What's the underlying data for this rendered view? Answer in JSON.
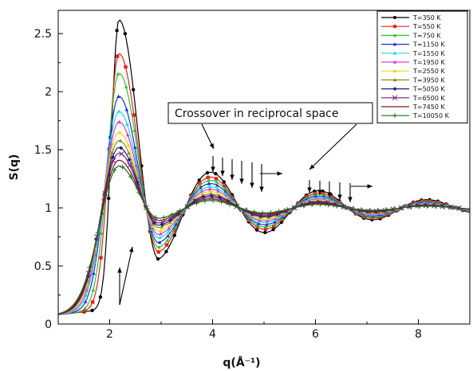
{
  "chart_data": {
    "type": "line",
    "title": "",
    "xlabel": "q(Å⁻¹)",
    "ylabel": "S(q)",
    "xlim": [
      1,
      9
    ],
    "ylim": [
      0,
      2.7
    ],
    "x_ticks": [
      "2",
      "4",
      "6",
      "8"
    ],
    "y_ticks": [
      "0",
      "0.5",
      "1",
      "1.5",
      "2",
      "2.5"
    ],
    "grid": false,
    "legend_position": "top-right",
    "annotation": "Crossover in reciprocal space",
    "series": [
      {
        "name": "T=350 K",
        "color": "#000000",
        "marker": "circle",
        "peak1": 2.62,
        "trough1": 0.56,
        "peak2": 1.28,
        "trough2": 0.82,
        "peak3": 1.11
      },
      {
        "name": "T=550 K",
        "color": "#e8201c",
        "marker": "square",
        "peak1": 2.33,
        "trough1": 0.62,
        "peak2": 1.25,
        "trough2": 0.85,
        "peak3": 1.1
      },
      {
        "name": "T=750 K",
        "color": "#2cc52c",
        "marker": "triangle",
        "peak1": 2.16,
        "trough1": 0.66,
        "peak2": 1.23,
        "trough2": 0.87,
        "peak3": 1.09
      },
      {
        "name": "T=1150 K",
        "color": "#1a2fd6",
        "marker": "triangle",
        "peak1": 1.96,
        "trough1": 0.7,
        "peak2": 1.2,
        "trough2": 0.89,
        "peak3": 1.08
      },
      {
        "name": "T=1550 K",
        "color": "#24d6e8",
        "marker": "triangle",
        "peak1": 1.83,
        "trough1": 0.74,
        "peak2": 1.18,
        "trough2": 0.9,
        "peak3": 1.07
      },
      {
        "name": "T=1950 K",
        "color": "#d63cd6",
        "marker": "triangle",
        "peak1": 1.74,
        "trough1": 0.77,
        "peak2": 1.16,
        "trough2": 0.92,
        "peak3": 1.06
      },
      {
        "name": "T=2550 K",
        "color": "#e8d51a",
        "marker": "triangle",
        "peak1": 1.65,
        "trough1": 0.8,
        "peak2": 1.14,
        "trough2": 0.93,
        "peak3": 1.05
      },
      {
        "name": "T=3950 K",
        "color": "#8a8a1a",
        "marker": "triangle",
        "peak1": 1.58,
        "trough1": 0.83,
        "peak2": 1.12,
        "trough2": 0.94,
        "peak3": 1.04
      },
      {
        "name": "T=5050 K",
        "color": "#1a1a8a",
        "marker": "diamond",
        "peak1": 1.52,
        "trough1": 0.85,
        "peak2": 1.1,
        "trough2": 0.95,
        "peak3": 1.03
      },
      {
        "name": "T=6500 K",
        "color": "#7a1a7a",
        "marker": "x",
        "peak1": 1.47,
        "trough1": 0.87,
        "peak2": 1.09,
        "trough2": 0.96,
        "peak3": 1.03
      },
      {
        "name": "T=7450 K",
        "color": "#7a1a1a",
        "marker": "none",
        "peak1": 1.41,
        "trough1": 0.89,
        "peak2": 1.08,
        "trough2": 0.97,
        "peak3": 1.02
      },
      {
        "name": "T=10050 K",
        "color": "#1a6b1a",
        "marker": "plus",
        "peak1": 1.36,
        "trough1": 0.91,
        "peak2": 1.07,
        "trough2": 0.97,
        "peak3": 1.02
      }
    ]
  }
}
